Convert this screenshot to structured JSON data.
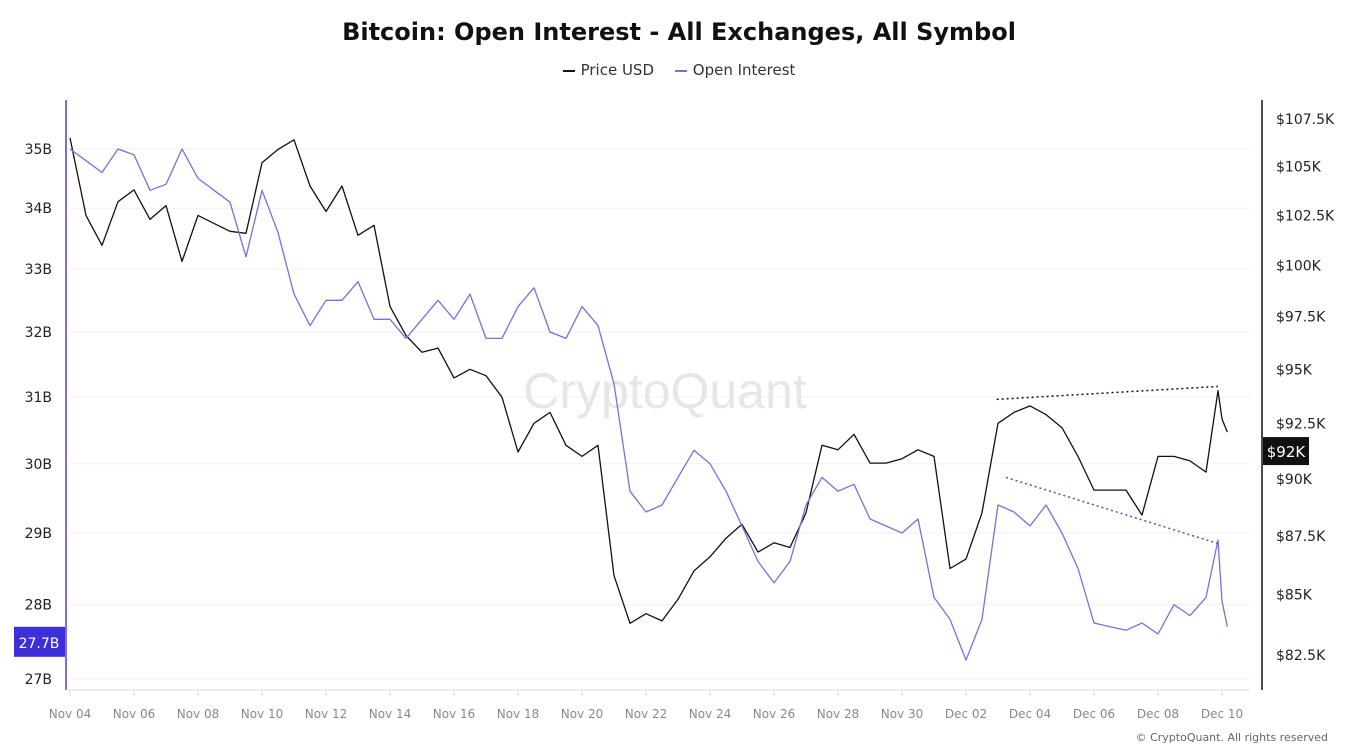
{
  "chart_data": {
    "type": "line",
    "title": "Bitcoin: Open Interest - All Exchanges, All Symbol",
    "legend_position": "top-center",
    "watermark": "CryptoQuant",
    "footer": "© CryptoQuant. All rights reserved",
    "x_ticks": [
      "Nov 04",
      "Nov 06",
      "Nov 08",
      "Nov 10",
      "Nov 12",
      "Nov 14",
      "Nov 16",
      "Nov 18",
      "Nov 20",
      "Nov 22",
      "Nov 24",
      "Nov 26",
      "Nov 28",
      "Nov 30",
      "Dec 02",
      "Dec 04",
      "Dec 06",
      "Dec 08",
      "Dec 10"
    ],
    "left_axis": {
      "scale": "log",
      "ticks": [
        "27B",
        "28B",
        "29B",
        "30B",
        "31B",
        "32B",
        "33B",
        "34B",
        "35B"
      ],
      "tick_values": [
        27,
        28,
        29,
        30,
        31,
        32,
        33,
        34,
        35
      ],
      "unit": "B"
    },
    "right_axis": {
      "scale": "log",
      "ticks": [
        "$82.5K",
        "$85K",
        "$87.5K",
        "$90K",
        "$92.5K",
        "$95K",
        "$97.5K",
        "$100K",
        "$102.5K",
        "$105K",
        "$107.5K"
      ],
      "tick_values": [
        82.5,
        85,
        87.5,
        90,
        92.5,
        95,
        97.5,
        100,
        102.5,
        105,
        107.5
      ],
      "unit": "K USD"
    },
    "grid": true,
    "current_labels": {
      "open_interest": "27.7B",
      "price": "$92K"
    },
    "colors": {
      "price": "#111111",
      "open_interest": "#7b6ee0",
      "oi_label_bg": "#3d2fd6",
      "price_label_bg": "#111111"
    },
    "dates": [
      "11-04 00:00",
      "11-04 12:00",
      "11-05 00:00",
      "11-05 12:00",
      "11-06 00:00",
      "11-06 12:00",
      "11-07 00:00",
      "11-07 12:00",
      "11-08 00:00",
      "11-08 12:00",
      "11-09 00:00",
      "11-09 12:00",
      "11-10 00:00",
      "11-10 12:00",
      "11-11 00:00",
      "11-11 12:00",
      "11-12 00:00",
      "11-12 12:00",
      "11-13 00:00",
      "11-13 12:00",
      "11-14 00:00",
      "11-14 12:00",
      "11-15 00:00",
      "11-15 12:00",
      "11-16 00:00",
      "11-16 12:00",
      "11-17 00:00",
      "11-17 12:00",
      "11-18 00:00",
      "11-18 12:00",
      "11-19 00:00",
      "11-19 12:00",
      "11-20 00:00",
      "11-20 12:00",
      "11-21 00:00",
      "11-21 12:00",
      "11-22 00:00",
      "11-22 12:00",
      "11-23 00:00",
      "11-23 12:00",
      "11-24 00:00",
      "11-24 12:00",
      "11-25 00:00",
      "11-25 12:00",
      "11-26 00:00",
      "11-26 12:00",
      "11-27 00:00",
      "11-27 12:00",
      "11-28 00:00",
      "11-28 12:00",
      "11-29 00:00",
      "11-29 12:00",
      "11-30 00:00",
      "11-30 12:00",
      "12-01 00:00",
      "12-01 12:00",
      "12-02 00:00",
      "12-02 12:00",
      "12-03 00:00",
      "12-03 12:00",
      "12-04 00:00",
      "12-04 12:00",
      "12-05 00:00",
      "12-05 12:00",
      "12-06 00:00",
      "12-06 12:00",
      "12-07 00:00",
      "12-07 12:00",
      "12-08 00:00",
      "12-08 12:00",
      "12-09 00:00",
      "12-09 12:00",
      "12-09 21:00",
      "12-10 00:00",
      "12-10 04:00"
    ],
    "series": [
      {
        "name": "Price USD",
        "axis": "right",
        "unit": "K USD",
        "values": [
          106.5,
          102.5,
          101.0,
          103.2,
          103.8,
          102.3,
          103.0,
          100.2,
          102.5,
          102.1,
          101.7,
          101.6,
          105.2,
          105.9,
          106.4,
          104.0,
          102.7,
          104.0,
          101.5,
          102.0,
          98.0,
          96.6,
          95.8,
          96.0,
          94.6,
          95.0,
          94.7,
          93.7,
          91.2,
          92.5,
          93.0,
          91.5,
          91.0,
          91.5,
          85.8,
          83.8,
          84.2,
          83.9,
          84.8,
          86.0,
          86.6,
          87.4,
          88.0,
          86.8,
          87.2,
          87.0,
          88.5,
          91.5,
          91.3,
          92.0,
          90.7,
          90.7,
          90.9,
          91.3,
          91.0,
          86.1,
          86.5,
          88.5,
          92.5,
          93.0,
          93.3,
          92.9,
          92.3,
          91.0,
          89.5,
          89.5,
          89.5,
          88.4,
          91.0,
          91.0,
          90.8,
          90.3,
          94.0,
          92.7,
          92.1
        ]
      },
      {
        "name": "Open Interest",
        "axis": "left",
        "unit": "B",
        "values": [
          35.0,
          34.8,
          34.6,
          35.0,
          34.9,
          34.3,
          34.4,
          35.0,
          34.5,
          34.3,
          34.1,
          33.2,
          34.3,
          33.6,
          32.6,
          32.1,
          32.5,
          32.5,
          32.8,
          32.2,
          32.2,
          31.9,
          32.2,
          32.5,
          32.2,
          32.6,
          31.9,
          31.9,
          32.4,
          32.7,
          32.0,
          31.9,
          32.4,
          32.1,
          31.2,
          29.6,
          29.3,
          29.4,
          29.8,
          30.2,
          30.0,
          29.6,
          29.1,
          28.6,
          28.3,
          28.6,
          29.4,
          29.8,
          29.6,
          29.7,
          29.2,
          29.1,
          29.0,
          29.2,
          28.1,
          27.8,
          27.25,
          27.8,
          29.4,
          29.3,
          29.1,
          29.4,
          29.0,
          28.5,
          27.75,
          27.7,
          27.65,
          27.75,
          27.6,
          28.0,
          27.85,
          28.1,
          28.9,
          28.05,
          27.7
        ]
      }
    ],
    "annotations": [
      {
        "kind": "dotted-trendline",
        "axis": "right",
        "color": "#111111",
        "from": [
          "12-02 23:00",
          93.6
        ],
        "to": [
          "12-09 21:00",
          94.2
        ]
      },
      {
        "kind": "dotted-trendline",
        "axis": "left",
        "color": "#5a4bc8",
        "from": [
          "12-03 06:00",
          29.8
        ],
        "to": [
          "12-09 21:00",
          28.85
        ]
      }
    ]
  }
}
